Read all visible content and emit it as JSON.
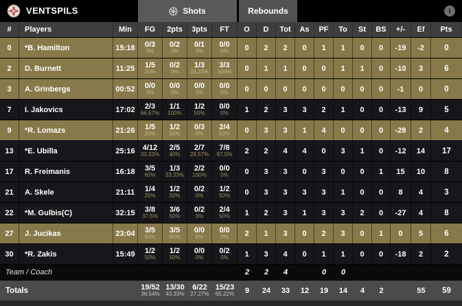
{
  "header": {
    "team_name": "VENTSPILS",
    "shots_label": "Shots",
    "rebounds_label": "Rebounds",
    "info_icon": "i"
  },
  "table": {
    "columns": [
      "#",
      "Players",
      "Min",
      "FG",
      "2pts",
      "3pts",
      "FT",
      "O",
      "D",
      "Tot",
      "As",
      "PF",
      "To",
      "St",
      "BS",
      "+/-",
      "Ef",
      "Pts"
    ],
    "players": [
      {
        "num": "0",
        "name": "*B. Hamilton",
        "min": "15:18",
        "fg": "0/3",
        "fg_pct": "0%",
        "p2": "0/2",
        "p2_pct": "0%",
        "p3": "0/1",
        "p3_pct": "0%",
        "ft": "0/0",
        "ft_pct": "0%",
        "o": "0",
        "d": "2",
        "tot": "2",
        "as": "0",
        "pf": "1",
        "to": "1",
        "st": "0",
        "bs": "0",
        "pm": "-19",
        "ef": "-2",
        "pts": "0",
        "highlighted": true
      },
      {
        "num": "2",
        "name": "D. Burnett",
        "min": "11:25",
        "fg": "1/5",
        "fg_pct": "20%",
        "p2": "0/2",
        "p2_pct": "0%",
        "p3": "1/3",
        "p3_pct": "33.33%",
        "ft": "3/3",
        "ft_pct": "100%",
        "o": "0",
        "d": "1",
        "tot": "1",
        "as": "0",
        "pf": "0",
        "to": "1",
        "st": "1",
        "bs": "0",
        "pm": "-10",
        "ef": "3",
        "pts": "6",
        "highlighted": true
      },
      {
        "num": "3",
        "name": "A. Grinbergs",
        "min": "00:52",
        "fg": "0/0",
        "fg_pct": "0%",
        "p2": "0/0",
        "p2_pct": "0%",
        "p3": "0/0",
        "p3_pct": "0%",
        "ft": "0/0",
        "ft_pct": "0%",
        "o": "0",
        "d": "0",
        "tot": "0",
        "as": "0",
        "pf": "0",
        "to": "0",
        "st": "0",
        "bs": "0",
        "pm": "-1",
        "ef": "0",
        "pts": "0",
        "highlighted": true
      },
      {
        "num": "7",
        "name": "I. Jakovics",
        "min": "17:02",
        "fg": "2/3",
        "fg_pct": "66.67%",
        "p2": "1/1",
        "p2_pct": "100%",
        "p3": "1/2",
        "p3_pct": "50%",
        "ft": "0/0",
        "ft_pct": "0%",
        "o": "1",
        "d": "2",
        "tot": "3",
        "as": "3",
        "pf": "2",
        "to": "1",
        "st": "0",
        "bs": "0",
        "pm": "-13",
        "ef": "9",
        "pts": "5",
        "highlighted": false
      },
      {
        "num": "9",
        "name": "*R. Lomazs",
        "min": "21:26",
        "fg": "1/5",
        "fg_pct": "20%",
        "p2": "1/2",
        "p2_pct": "50%",
        "p3": "0/3",
        "p3_pct": "0%",
        "ft": "2/4",
        "ft_pct": "50%",
        "o": "0",
        "d": "3",
        "tot": "3",
        "as": "1",
        "pf": "4",
        "to": "0",
        "st": "0",
        "bs": "0",
        "pm": "-28",
        "ef": "2",
        "pts": "4",
        "highlighted": true
      },
      {
        "num": "13",
        "name": "*E. Ubilla",
        "min": "25:16",
        "fg": "4/12",
        "fg_pct": "33.33%",
        "p2": "2/5",
        "p2_pct": "40%",
        "p3": "2/7",
        "p3_pct": "28.57%",
        "ft": "7/8",
        "ft_pct": "87.5%",
        "o": "2",
        "d": "2",
        "tot": "4",
        "as": "4",
        "pf": "0",
        "to": "3",
        "st": "1",
        "bs": "0",
        "pm": "-12",
        "ef": "14",
        "pts": "17",
        "highlighted": false
      },
      {
        "num": "17",
        "name": "R. Freimanis",
        "min": "16:18",
        "fg": "3/5",
        "fg_pct": "60%",
        "p2": "1/3",
        "p2_pct": "33.33%",
        "p3": "2/2",
        "p3_pct": "100%",
        "ft": "0/0",
        "ft_pct": "0%",
        "o": "0",
        "d": "3",
        "tot": "3",
        "as": "0",
        "pf": "3",
        "to": "0",
        "st": "0",
        "bs": "1",
        "pm": "15",
        "ef": "10",
        "pts": "8",
        "highlighted": false
      },
      {
        "num": "21",
        "name": "A. Skele",
        "min": "21:11",
        "fg": "1/4",
        "fg_pct": "25%",
        "p2": "1/2",
        "p2_pct": "50%",
        "p3": "0/2",
        "p3_pct": "0%",
        "ft": "1/2",
        "ft_pct": "50%",
        "o": "0",
        "d": "3",
        "tot": "3",
        "as": "3",
        "pf": "3",
        "to": "1",
        "st": "0",
        "bs": "0",
        "pm": "8",
        "ef": "4",
        "pts": "3",
        "highlighted": false
      },
      {
        "num": "22",
        "name": "*M. Gulbis(C)",
        "min": "32:15",
        "fg": "3/8",
        "fg_pct": "37.5%",
        "p2": "3/6",
        "p2_pct": "50%",
        "p3": "0/2",
        "p3_pct": "0%",
        "ft": "2/4",
        "ft_pct": "50%",
        "o": "1",
        "d": "2",
        "tot": "3",
        "as": "1",
        "pf": "3",
        "to": "3",
        "st": "2",
        "bs": "0",
        "pm": "-27",
        "ef": "4",
        "pts": "8",
        "highlighted": false
      },
      {
        "num": "27",
        "name": "J. Jucikas",
        "min": "23:04",
        "fg": "3/5",
        "fg_pct": "60%",
        "p2": "3/5",
        "p2_pct": "60%",
        "p3": "0/0",
        "p3_pct": "0%",
        "ft": "0/0",
        "ft_pct": "0%",
        "o": "2",
        "d": "1",
        "tot": "3",
        "as": "0",
        "pf": "2",
        "to": "3",
        "st": "0",
        "bs": "1",
        "pm": "0",
        "ef": "5",
        "pts": "6",
        "highlighted": true
      },
      {
        "num": "30",
        "name": "*R. Zakis",
        "min": "15:49",
        "fg": "1/2",
        "fg_pct": "50%",
        "p2": "1/2",
        "p2_pct": "50%",
        "p3": "0/0",
        "p3_pct": "0%",
        "ft": "0/2",
        "ft_pct": "0%",
        "o": "1",
        "d": "3",
        "tot": "4",
        "as": "0",
        "pf": "1",
        "to": "1",
        "st": "0",
        "bs": "0",
        "pm": "-18",
        "ef": "2",
        "pts": "2",
        "highlighted": false
      }
    ],
    "team_coach": {
      "label": "Team / Coach",
      "o": "2",
      "d": "2",
      "tot": "4",
      "pf": "0",
      "to": "0"
    },
    "totals": {
      "label": "Totals",
      "fg": "19/52",
      "fg_pct": "36.54%",
      "p2": "13/30",
      "p2_pct": "43.33%",
      "p3": "6/22",
      "p3_pct": "27.27%",
      "ft": "15/23",
      "ft_pct": "65.22%",
      "o": "9",
      "d": "24",
      "tot": "33",
      "as": "12",
      "pf": "19",
      "to": "14",
      "st": "4",
      "bs": "2",
      "pm": "",
      "ef": "55",
      "pts": "59"
    }
  },
  "colors": {
    "highlight_row": "#87794a",
    "dark_row": "#17171b",
    "header_bg": "#3e3e40",
    "tab_bg": "#59595b",
    "totals_bg": "#4b4b4d",
    "top_bar": "#000000"
  }
}
